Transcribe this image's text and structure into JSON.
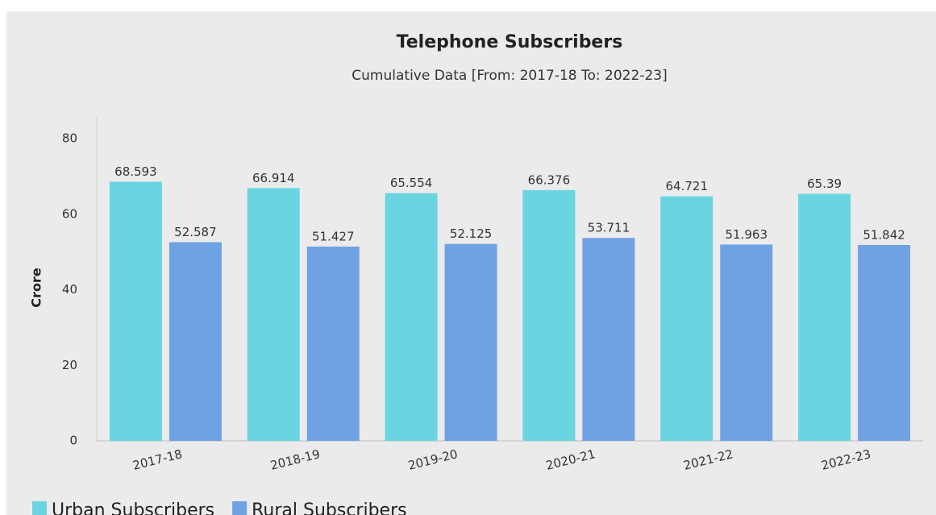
{
  "chart_data": {
    "type": "bar",
    "title": "Telephone Subscribers",
    "subtitle": "Cumulative Data [From: 2017-18 To: 2022-23]",
    "y_label": "Crore",
    "categories": [
      "2017-18",
      "2018-19",
      "2019-20",
      "2020-21",
      "2021-22",
      "2022-23"
    ],
    "series": [
      {
        "name": "Urban Subscribers",
        "color": "#6ad5e1",
        "values": [
          68.593,
          66.914,
          65.554,
          66.376,
          64.721,
          65.39
        ]
      },
      {
        "name": "Rural Subscribers",
        "color": "#6fa2e3",
        "values": [
          52.587,
          51.427,
          52.125,
          53.711,
          51.963,
          51.842
        ]
      }
    ],
    "ylim": [
      0,
      80
    ],
    "yticks": [
      0,
      20,
      40,
      60,
      80
    ],
    "grid": false,
    "legend": "bottom"
  }
}
